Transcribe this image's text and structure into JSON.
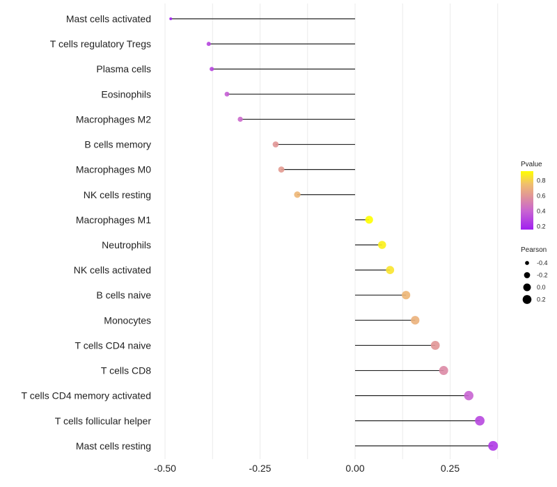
{
  "chart_data": {
    "type": "lollipop",
    "xlim": [
      -0.55,
      0.4
    ],
    "xticks": [
      -0.5,
      -0.25,
      0.0,
      0.25
    ],
    "xtick_labels": [
      "-0.50",
      "-0.25",
      "0.00",
      "0.25"
    ],
    "grid": true,
    "categories": [
      "Mast cells activated",
      "T cells regulatory  Tregs",
      "Plasma cells",
      "Eosinophils",
      "Macrophages M2",
      "B cells memory",
      "Macrophages M0",
      "NK cells resting",
      "Macrophages M1",
      "Neutrophils",
      "NK cells activated",
      "B cells naive",
      "Monocytes",
      "T cells CD4 naive",
      "T cells CD8",
      "T cells CD4 memory activated",
      "T cells follicular helper",
      "Mast cells resting"
    ],
    "pearson": [
      -0.485,
      -0.385,
      -0.377,
      -0.337,
      -0.302,
      -0.209,
      -0.194,
      -0.152,
      0.037,
      0.071,
      0.092,
      0.134,
      0.158,
      0.211,
      0.233,
      0.299,
      0.328,
      0.363
    ],
    "pvalue": [
      0.16,
      0.3,
      0.3,
      0.38,
      0.42,
      0.6,
      0.62,
      0.72,
      0.92,
      0.88,
      0.85,
      0.72,
      0.7,
      0.6,
      0.55,
      0.4,
      0.3,
      0.25
    ],
    "legend_color": {
      "title": "Pvalue",
      "ticks": [
        0.8,
        0.6,
        0.4,
        0.2
      ],
      "labels": [
        "0.8",
        "0.6",
        "0.4",
        "0.2"
      ],
      "range": [
        0.16,
        0.92
      ]
    },
    "legend_size": {
      "title": "Pearson",
      "values": [
        -0.4,
        -0.2,
        0.0,
        0.2
      ],
      "labels": [
        "-0.4",
        "-0.2",
        "0.0",
        "0.2"
      ]
    },
    "legend_placement": "right"
  }
}
